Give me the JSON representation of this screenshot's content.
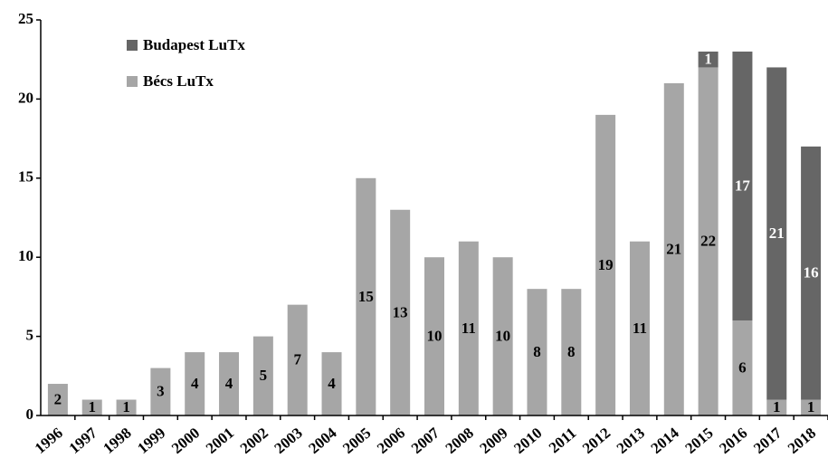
{
  "chart_data": {
    "type": "stacked_bar",
    "categories": [
      "1996",
      "1997",
      "1998",
      "1999",
      "2000",
      "2001",
      "2002",
      "2003",
      "2004",
      "2005",
      "2006",
      "2007",
      "2008",
      "2009",
      "2010",
      "2011",
      "2012",
      "2013",
      "2014",
      "2015",
      "2016",
      "2017",
      "2018"
    ],
    "series": [
      {
        "name": "Bécs LuTx",
        "color": "#a6a6a6",
        "label_color": "#000000",
        "values": [
          2,
          1,
          1,
          3,
          4,
          4,
          5,
          7,
          4,
          15,
          13,
          10,
          11,
          10,
          8,
          8,
          19,
          11,
          21,
          22,
          6,
          1,
          1
        ]
      },
      {
        "name": "Budapest LuTx",
        "color": "#666666",
        "label_color": "#ffffff",
        "values": [
          null,
          null,
          null,
          null,
          null,
          null,
          null,
          null,
          null,
          null,
          null,
          null,
          null,
          null,
          null,
          null,
          null,
          null,
          null,
          1,
          17,
          21,
          16
        ]
      }
    ],
    "ylim": [
      0,
      25
    ],
    "yticks": [
      0,
      5,
      10,
      15,
      20,
      25
    ],
    "grid": false,
    "legend": "top-left"
  }
}
